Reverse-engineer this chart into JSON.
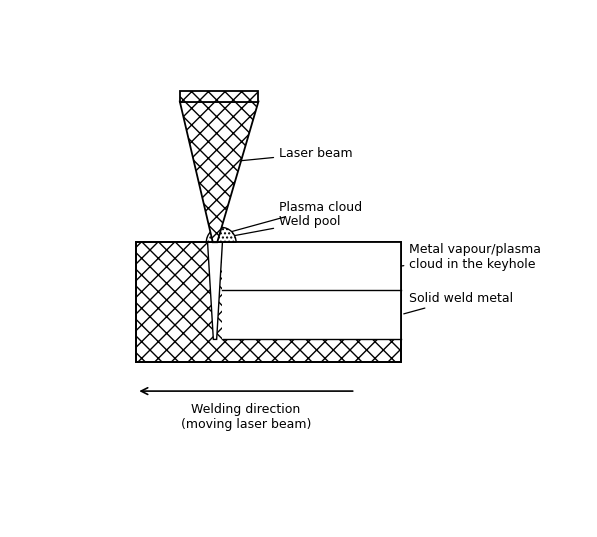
{
  "bg_color": "#ffffff",
  "labels": {
    "laser_beam": "Laser beam",
    "plasma_cloud": "Plasma cloud",
    "weld_pool": "Weld pool",
    "metal_vapour": "Metal vapour/plasma\ncloud in the keyhole",
    "solid_weld": "Solid weld metal",
    "welding_direction": "Welding direction\n(moving laser beam)"
  },
  "text_color": "#000000",
  "line_color": "#000000",
  "figsize": [
    5.97,
    5.37
  ],
  "dpi": 100
}
